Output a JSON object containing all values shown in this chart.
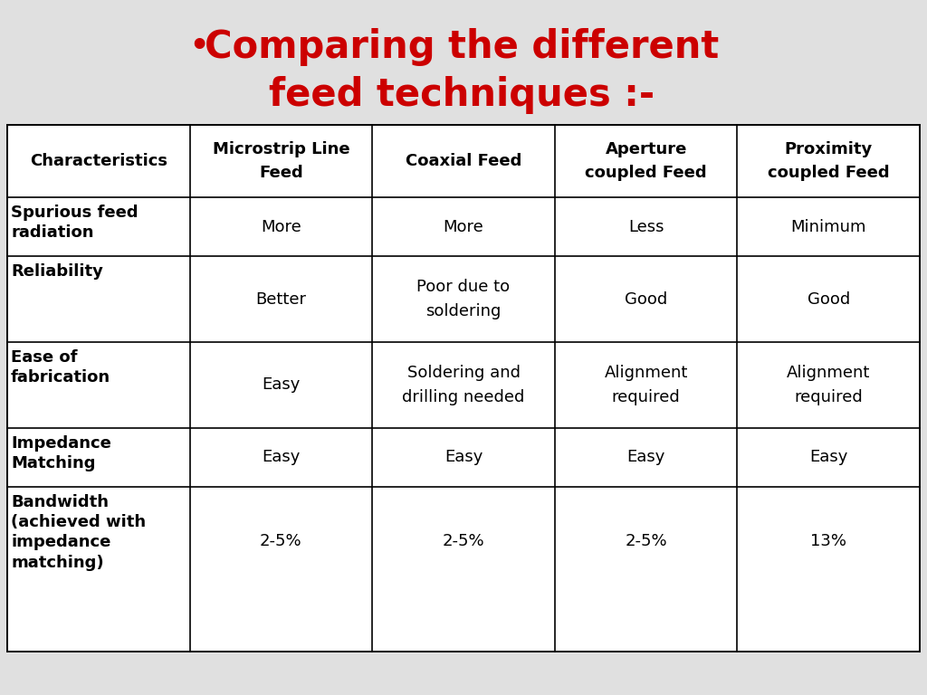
{
  "title_line1": "Comparing the different",
  "title_line2": "feed techniques :-",
  "title_color": "#cc0000",
  "bullet": "•",
  "background_color": "#e0e0e0",
  "table_background": "#ffffff",
  "headers": [
    "Characteristics",
    "Microstrip Line\nFeed",
    "Coaxial Feed",
    "Aperture\ncoupled Feed",
    "Proximity\ncoupled Feed"
  ],
  "rows": [
    [
      "Spurious feed\nradiation",
      "More",
      "More",
      "Less",
      "Minimum"
    ],
    [
      "Reliability",
      "Better",
      "Poor due to\nsoldering",
      "Good",
      "Good"
    ],
    [
      "Ease of\nfabrication",
      "Easy",
      "Soldering and\ndrilling needed",
      "Alignment\nrequired",
      "Alignment\nrequired"
    ],
    [
      "Impedance\nMatching",
      "Easy",
      "Easy",
      "Easy",
      "Easy"
    ],
    [
      "Bandwidth\n(achieved with\nimpedance\nmatching)",
      "2-5%",
      "2-5%",
      "2-5%",
      "13%"
    ]
  ],
  "header_font_size": 13,
  "body_font_size": 13,
  "line_color": "#000000",
  "line_width": 1.2,
  "title_font_size": 30,
  "bullet_font_size": 24
}
